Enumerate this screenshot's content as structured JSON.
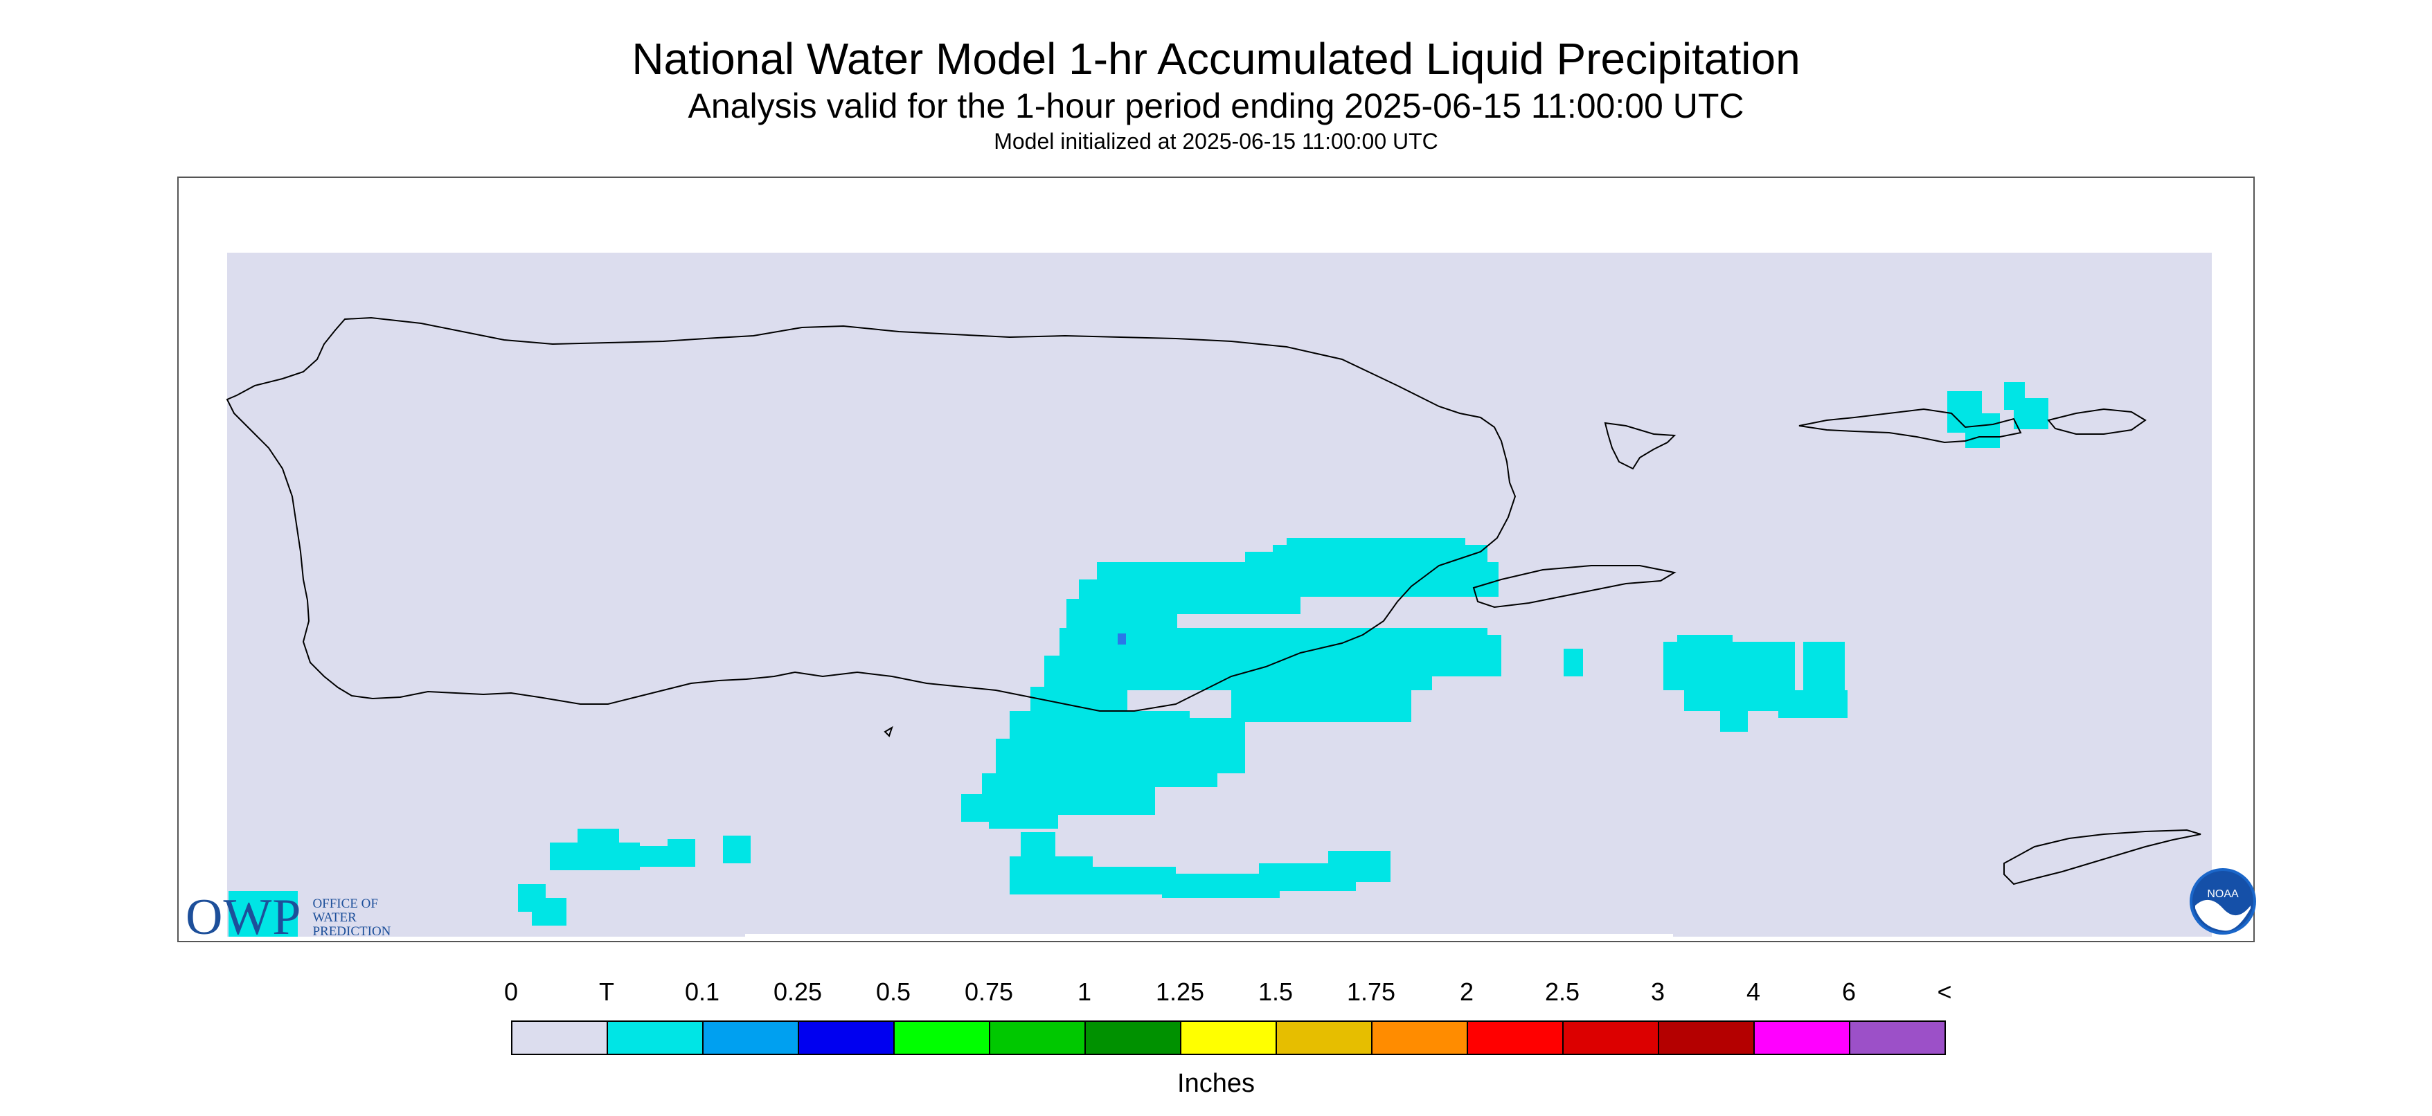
{
  "header": {
    "title": "National Water Model 1-hr Accumulated Liquid Precipitation",
    "subtitle": "Analysis valid for the 1-hour period ending 2025-06-15 11:00:00 UTC",
    "init_line": "Model initialized at 2025-06-15 11:00:00 UTC"
  },
  "map": {
    "region": "Puerto Rico and U.S. Virgin Islands",
    "background_color": "#dcddee",
    "coastline_color": "#000000",
    "precip_color_trace": "#00e5e5",
    "precip_color_light": "#2a78e8"
  },
  "legend": {
    "labels": [
      "0",
      "T",
      "0.1",
      "0.25",
      "0.5",
      "0.75",
      "1",
      "1.25",
      "1.5",
      "1.75",
      "2",
      "2.5",
      "3",
      "4",
      "6",
      "<"
    ],
    "colors": [
      "#dcddee",
      "#00e5e5",
      "#00a0f0",
      "#0000f0",
      "#00ff00",
      "#00c800",
      "#009100",
      "#ffff00",
      "#e6be00",
      "#ff8c00",
      "#ff0000",
      "#dc0000",
      "#b40000",
      "#ff00ff",
      "#9c50c8"
    ],
    "units": "Inches"
  },
  "logos": {
    "owp_letters": "OWP",
    "owp_name_lines": [
      "Office of",
      "Water",
      "Prediction"
    ],
    "noaa_text": "NOAA"
  }
}
